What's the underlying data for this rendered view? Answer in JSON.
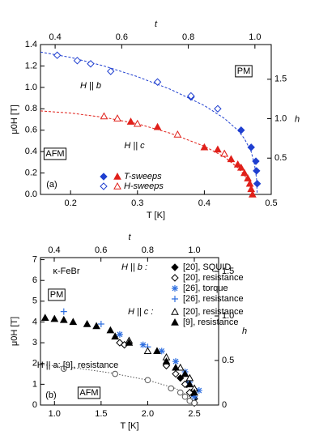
{
  "chart_data": [
    {
      "type": "scatter",
      "xlabel": "T [K]",
      "ylabel": "μ0H [T]",
      "x2label": "t",
      "y2label": "h",
      "xlim": [
        0.155,
        0.5
      ],
      "xticks": [
        0.2,
        0.3,
        0.4,
        0.5
      ],
      "ylim": [
        0,
        1.4
      ],
      "yticks": [
        {
          "value": 0,
          "label": "0.0"
        },
        0.2,
        0.4,
        0.6,
        0.8,
        {
          "value": 1,
          "label": "1.0"
        },
        1.2,
        1.4
      ],
      "x2lim": [
        0.356,
        1.049
      ],
      "x2ticks": [
        0.4,
        0.6,
        0.8,
        {
          "value": 1,
          "label": "1.0"
        }
      ],
      "y2lim": [
        0.04,
        1.94
      ],
      "y2ticks": [
        0.5,
        {
          "value": 1,
          "label": "1.0"
        },
        1.5
      ],
      "annotations": [
        "PM",
        "AFM",
        "H || b",
        "H || c",
        "(a)"
      ],
      "series": [
        {
          "name": "T-sweeps",
          "color": "#1f3fd0",
          "marker": "diamond",
          "x": [
            0.38,
            0.455,
            0.47,
            0.477,
            0.478,
            0.479
          ],
          "values": [
            0.91,
            0.6,
            0.44,
            0.31,
            0.22,
            0.1
          ]
        },
        {
          "name": "H-sweeps",
          "color": "#1f3fd0",
          "marker": "diamond-open",
          "x": [
            0.18,
            0.21,
            0.23,
            0.26,
            0.33,
            0.38,
            0.42
          ],
          "values": [
            1.3,
            1.25,
            1.22,
            1.15,
            1.05,
            0.92,
            0.8
          ]
        },
        {
          "color": "#e0201a",
          "marker": "triangle",
          "x": [
            0.29,
            0.33,
            0.4,
            0.42,
            0.43,
            0.44,
            0.45,
            0.455,
            0.46,
            0.465,
            0.468,
            0.47,
            0.472
          ],
          "values": [
            0.68,
            0.63,
            0.44,
            0.42,
            0.38,
            0.33,
            0.28,
            0.25,
            0.2,
            0.15,
            0.1,
            0.05,
            0
          ]
        },
        {
          "color": "#e0201a",
          "marker": "triangle-open",
          "x": [
            0.25,
            0.27,
            0.3,
            0.36,
            0.43
          ],
          "values": [
            0.73,
            0.71,
            0.66,
            0.56,
            0.38
          ]
        }
      ],
      "lines": [
        {
          "color": "#1f3fd0",
          "x": [
            0.155,
            0.2,
            0.25,
            0.3,
            0.35,
            0.4,
            0.43,
            0.45,
            0.46,
            0.47,
            0.475,
            0.478,
            0.479
          ],
          "values": [
            1.33,
            1.28,
            1.2,
            1.1,
            0.98,
            0.83,
            0.71,
            0.6,
            0.52,
            0.4,
            0.28,
            0.15,
            0
          ]
        },
        {
          "color": "#e0201a",
          "x": [
            0.155,
            0.2,
            0.25,
            0.3,
            0.35,
            0.4,
            0.43,
            0.45,
            0.46,
            0.47,
            0.473
          ],
          "values": [
            0.78,
            0.76,
            0.72,
            0.66,
            0.57,
            0.45,
            0.35,
            0.25,
            0.18,
            0.07,
            0
          ]
        }
      ]
    },
    {
      "type": "scatter",
      "xlabel": "T [K]",
      "ylabel": "μ0H [T]",
      "x2label": "t",
      "y2label": "h",
      "xlim": [
        0.85,
        2.76
      ],
      "xticks": [
        {
          "value": 1,
          "label": "1.0"
        },
        1.5,
        {
          "value": 2,
          "label": "2.0"
        },
        2.5
      ],
      "ylim": [
        0,
        7.1
      ],
      "yticks": [
        0,
        1,
        2,
        3,
        4,
        5,
        6,
        7
      ],
      "x2lim": [
        0.341,
        1.104
      ],
      "x2ticks": [
        0.4,
        0.6,
        0.8,
        {
          "value": 1,
          "label": "1.0"
        }
      ],
      "y2lim": [
        0,
        1.655
      ],
      "y2ticks": [
        0,
        0.5,
        {
          "value": 1,
          "label": "1.0"
        },
        1.5
      ],
      "legend_headers": [
        "H || b :",
        "H || c :"
      ],
      "annotations": [
        "κ-FeBr",
        "PM",
        "AFM",
        "(b)",
        "H || a: [9], resistance"
      ],
      "series": [
        {
          "name": "[20], SQUID",
          "color": "#000000",
          "marker": "diamond",
          "x": [
            2.2,
            2.35,
            2.42,
            2.47,
            2.5
          ],
          "values": [
            1.9,
            1.3,
            1.0,
            0.6,
            0.3
          ]
        },
        {
          "name": "[20], resistance",
          "color": "#000000",
          "marker": "diamond-open",
          "x": [
            1.7,
            1.75,
            2.2,
            2.3,
            2.4,
            2.45,
            2.48,
            2.5
          ],
          "values": [
            3.0,
            2.9,
            1.9,
            1.5,
            1.0,
            0.6,
            0.3,
            0.1
          ]
        },
        {
          "name": "[26], torque",
          "color": "#2f6fe0",
          "marker": "star",
          "x": [
            1.7,
            1.95,
            2.15,
            2.3,
            2.4,
            2.45,
            2.55,
            2.5
          ],
          "values": [
            3.4,
            2.9,
            2.6,
            2.1,
            1.6,
            1.1,
            0.7,
            0.4
          ]
        },
        {
          "name": "[26], resistance",
          "color": "#2f6fe0",
          "marker": "plus",
          "x": [
            1.1,
            1.5,
            2.0
          ],
          "values": [
            4.5,
            3.9,
            2.8
          ]
        },
        {
          "name": "[20], resistance",
          "color": "#000000",
          "marker": "triangle-open",
          "x": [
            1.8,
            2.0,
            2.2,
            2.35,
            2.45,
            2.5
          ],
          "values": [
            3.1,
            2.6,
            2.3,
            1.8,
            1.3,
            0.8
          ]
        },
        {
          "name": "[9], resistance",
          "color": "#000000",
          "marker": "triangle",
          "x": [
            0.9,
            1.0,
            1.1,
            1.2,
            1.35,
            1.45,
            1.6,
            1.65,
            1.8,
            2.1,
            2.2,
            2.3,
            2.4,
            2.45,
            2.5
          ],
          "values": [
            4.2,
            4.15,
            4.1,
            4.0,
            3.9,
            3.8,
            3.6,
            3.3,
            3.0,
            2.6,
            2.1,
            1.8,
            1.5,
            1.0,
            0.6
          ]
        },
        {
          "color": "#555555",
          "marker": "circle-open",
          "x": [
            1.1,
            1.65,
            2.0,
            2.25,
            2.35,
            2.4,
            2.45,
            2.5
          ],
          "values": [
            1.75,
            1.5,
            1.2,
            0.8,
            0.6,
            0.4,
            0.2,
            0.1
          ]
        }
      ],
      "lines": [
        {
          "color": "#555555",
          "x": [
            0.85,
            1.2,
            1.6,
            2.0,
            2.3,
            2.45,
            2.52
          ],
          "values": [
            1.95,
            1.8,
            1.55,
            1.2,
            0.8,
            0.4,
            0
          ]
        }
      ]
    }
  ]
}
